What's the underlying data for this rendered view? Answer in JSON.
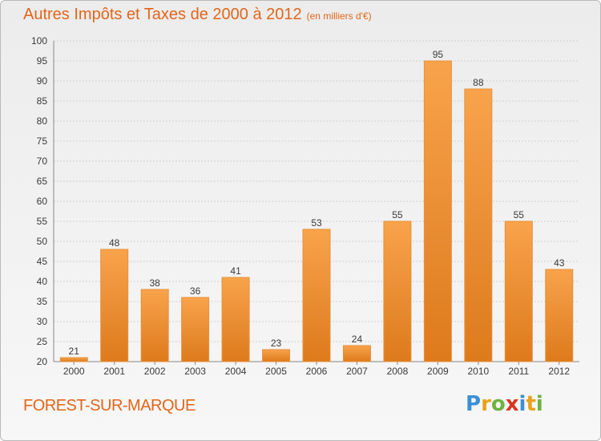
{
  "title": "Autres Impôts et Taxes de 2000 à 2012",
  "subtitle": "(en milliers d'€)",
  "commune": "FOREST-SUR-MARQUE",
  "logo": {
    "text": "Proxiti",
    "letters": [
      {
        "char": "P",
        "color": "#3b8fd6"
      },
      {
        "char": "r",
        "color": "#e8a21c"
      },
      {
        "char": "o",
        "color": "#6db33f"
      },
      {
        "char": "x",
        "color": "#d9351c"
      },
      {
        "char": "i",
        "color": "#3b8fd6"
      },
      {
        "char": "t",
        "color": "#e8a21c"
      },
      {
        "char": "i",
        "color": "#6db33f"
      }
    ]
  },
  "colors": {
    "accent": "#e2651a",
    "bar_top": "#f8a34c",
    "bar_bottom": "#dd7a1c",
    "grid": "#d0d0d0"
  },
  "chart_data": {
    "type": "bar",
    "title": "Autres Impôts et Taxes de 2000 à 2012",
    "subtitle": "(en milliers d'€)",
    "categories": [
      "2000",
      "2001",
      "2002",
      "2003",
      "2004",
      "2005",
      "2006",
      "2007",
      "2008",
      "2009",
      "2010",
      "2011",
      "2012"
    ],
    "values": [
      21,
      48,
      38,
      36,
      41,
      23,
      53,
      24,
      55,
      95,
      88,
      55,
      43
    ],
    "ylim": [
      20,
      100
    ],
    "yticks": [
      20,
      25,
      30,
      35,
      40,
      45,
      50,
      55,
      60,
      65,
      70,
      75,
      80,
      85,
      90,
      95,
      100
    ],
    "grid": true,
    "xlabel": "",
    "ylabel": ""
  }
}
